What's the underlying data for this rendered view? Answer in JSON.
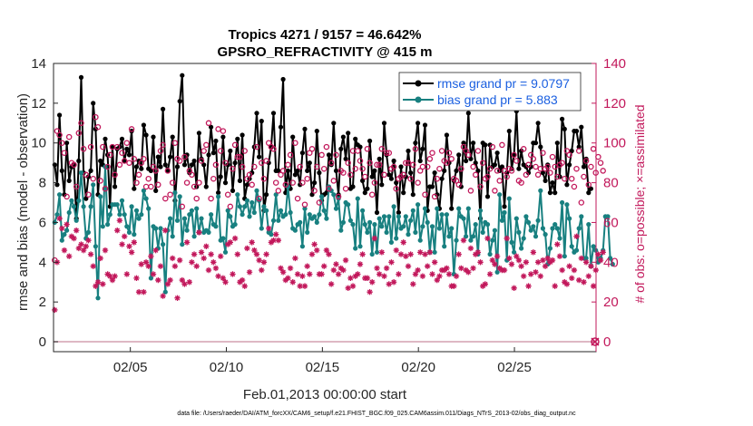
{
  "chart_data": {
    "type": "line",
    "title": "Tropics 4271 / 9157 = 46.642%",
    "subtitle": "GPSRO_REFRACTIVITY @ 415 m",
    "xlabel": "Feb.01,2013 00:00:00 start",
    "ylabel": "rmse and bias (model - observation)",
    "ylabel_right": "# of obs: o=possible; ×=assimilated",
    "xlim": [
      1,
      29.25
    ],
    "ylim": [
      -0.5,
      14
    ],
    "ylim_right": [
      -5,
      140
    ],
    "x_ticks": [
      {
        "x": 5,
        "label": "02/05"
      },
      {
        "x": 10,
        "label": "02/10"
      },
      {
        "x": 15,
        "label": "02/15"
      },
      {
        "x": 20,
        "label": "02/20"
      },
      {
        "x": 25,
        "label": "02/25"
      }
    ],
    "y_ticks_left": [
      "0",
      "2",
      "4",
      "6",
      "8",
      "10",
      "12",
      "14"
    ],
    "y_ticks_right": [
      "0",
      "20",
      "40",
      "60",
      "80",
      "100",
      "120",
      "140"
    ],
    "legend": {
      "position": "top-right"
    },
    "series": [
      {
        "name": "rmse grand pr = 9.0797",
        "axis": "left",
        "color": "#000000",
        "marker": "filled-circle",
        "values": [
          8.9,
          7.9,
          11.4,
          8.6,
          7.4,
          10.0,
          8.1,
          8.8,
          8.9,
          6.2,
          9.1,
          13.3,
          8.5,
          7.2,
          8.3,
          8.6,
          12.0,
          10.7,
          7.4,
          9.1,
          8.9,
          10.2,
          9.4,
          6.8,
          9.8,
          7.8,
          9.7,
          9.8,
          10.2,
          9.1,
          9.7,
          9.4,
          10.6,
          7.7,
          8.8,
          9.1,
          8.7,
          10.9,
          10.4,
          8.7,
          8.6,
          10.3,
          7.6,
          9.3,
          8.8,
          11.7,
          8.9,
          8.6,
          9.3,
          10.3,
          7.1,
          8.8,
          12.1,
          13.4,
          8.9,
          9.4,
          8.5,
          8.9,
          9.1,
          7.8,
          10.5,
          9.2,
          8.9,
          7.8,
          9.4,
          10.8,
          9.5,
          10.1,
          7.5,
          8.3,
          10.3,
          8.0,
          8.9,
          9.6,
          7.6,
          9.0,
          10.2,
          8.1,
          10.4,
          7.2,
          7.9,
          8.2,
          8.5,
          9.8,
          11.5,
          9.3,
          11.1,
          6.6,
          7.4,
          9.0,
          9.8,
          11.5,
          8.6,
          8.6,
          10.8,
          13.2,
          7.5,
          8.6,
          7.7,
          10.3,
          8.4,
          8.6,
          7.9,
          9.5,
          10.7,
          8.6,
          9.0,
          7.4,
          8.0,
          10.6,
          8.5,
          7.1,
          7.4,
          7.5,
          9.4,
          8.9,
          11.0,
          8.6,
          7.4,
          9.7,
          10.3,
          9.2,
          10.5,
          7.7,
          7.8,
          10.2,
          9.9,
          9.8,
          8.1,
          7.5,
          7.7,
          10.1,
          8.3,
          8.6,
          6.5,
          9.2,
          7.9,
          11.0,
          9.4,
          8.4,
          8.2,
          9.1,
          8.0,
          6.5,
          8.8,
          7.5,
          8.3,
          9.6,
          8.5,
          7.4,
          10.0,
          11.0,
          9.1,
          9.7,
          10.9,
          6.6,
          7.8,
          7.8,
          8.5,
          7.4,
          6.7,
          8.2,
          8.6,
          10.4,
          9.0,
          6.7,
          8.1,
          8.6,
          9.4,
          7.8,
          10.0,
          9.1,
          11.5,
          9.2,
          10.0,
          9.0,
          8.6,
          6.2,
          10.0,
          9.9,
          7.3,
          9.9,
          8.8,
          8.9,
          9.5,
          8.6,
          8.8,
          6.8,
          8.5,
          10.6,
          8.7,
          9.4,
          11.6,
          8.7,
          9.6,
          8.9,
          8.8,
          8.5,
          8.8,
          10.0,
          10.0,
          11.0,
          9.8,
          8.5,
          8.1,
          8.9,
          7.5,
          8.0,
          7.5,
          10.0,
          8.3,
          11.2,
          10.7,
          7.9,
          8.9,
          9.6,
          10.6,
          10.6,
          9.8,
          10.8,
          8.8,
          9.2,
          7.5,
          7.7
        ]
      },
      {
        "name": "bias grand pr = 5.883",
        "axis": "left",
        "color": "#188080",
        "marker": "filled-circle",
        "values": [
          6.0,
          6.4,
          7.4,
          5.1,
          5.4,
          5.6,
          6.5,
          7.1,
          6.8,
          6.1,
          7.1,
          8.5,
          6.8,
          5.2,
          5.5,
          6.8,
          7.9,
          4.8,
          2.2,
          7.3,
          5.8,
          8.8,
          5.9,
          6.4,
          6.9,
          6.9,
          6.9,
          6.4,
          7.1,
          6.4,
          5.8,
          5.5,
          6.8,
          5.4,
          6.6,
          6.2,
          6.4,
          7.6,
          7.2,
          6.7,
          3.2,
          5.8,
          5.7,
          4.7,
          5.7,
          4.9,
          2.5,
          5.6,
          6.2,
          5.3,
          7.5,
          6.1,
          7.3,
          4.9,
          6.2,
          5.6,
          6.4,
          6.6,
          5.3,
          6.7,
          5.5,
          6.2,
          5.5,
          5.6,
          5.5,
          6.4,
          5.9,
          5.8,
          7.3,
          5.1,
          5.2,
          4.5,
          6.6,
          6.3,
          5.8,
          5.9,
          7.4,
          6.8,
          6.4,
          6.8,
          7.1,
          6.3,
          7.0,
          6.5,
          7.6,
          7.1,
          5.7,
          6.8,
          6.6,
          5.5,
          5.4,
          6.1,
          7.4,
          6.1,
          6.6,
          6.3,
          6.4,
          7.8,
          6.5,
          5.7,
          5.6,
          5.9,
          6.0,
          4.8,
          6.7,
          5.5,
          6.4,
          6.2,
          6.3,
          6.0,
          6.4,
          7.3,
          6.6,
          6.2,
          7.8,
          7.6,
          7.4,
          6.7,
          7.2,
          5.6,
          6.0,
          7.0,
          6.9,
          6.1,
          5.9,
          4.7,
          7.2,
          4.8,
          6.6,
          5.9,
          5.5,
          6.0,
          4.4,
          5.9,
          4.5,
          6.2,
          5.8,
          6.3,
          5.5,
          6.3,
          5.0,
          6.8,
          5.2,
          6.3,
          5.7,
          5.8,
          6.3,
          5.4,
          6.1,
          6.6,
          5.5,
          6.9,
          5.1,
          5.8,
          6.7,
          6.0,
          4.5,
          5.8,
          4.5,
          6.7,
          5.7,
          6.4,
          4.8,
          6.4,
          5.3,
          5.7,
          3.4,
          5.1,
          6.7,
          6.3,
          6.2,
          5.3,
          6.7,
          5.1,
          5.3,
          5.9,
          4.4,
          6.6,
          5.5,
          6.0,
          5.9,
          4.4,
          5.1,
          5.6,
          3.5,
          7.4,
          6.1,
          6.5,
          4.1,
          7.2,
          5.0,
          4.5,
          6.2,
          5.5,
          4.7,
          5.2,
          6.3,
          6.0,
          5.6,
          5.8,
          5.3,
          6.1,
          7.6,
          5.7,
          5.4,
          3.9,
          4.7,
          5.7,
          5.9,
          5.7,
          5.2,
          7.0,
          4.3,
          6.9,
          6.2,
          4.8,
          4.5,
          4.6,
          5.7,
          6.3,
          4.2,
          4.2,
          5.9,
          3.8,
          4.8,
          4.6,
          4.0,
          4.2,
          4.6,
          6.3,
          6.3,
          4.2,
          3.9
        ]
      },
      {
        "name": "# obs possible",
        "axis": "right",
        "color": "#c2185b",
        "marker": "open-circle",
        "values": [
          41,
          106,
          104,
          100,
          95,
          73,
          103,
          90,
          89,
          78,
          105,
          110,
          97,
          84,
          74,
          98,
          82,
          113,
          108,
          81,
          98,
          77,
          88,
          94,
          98,
          84,
          98,
          89,
          95,
          91,
          100,
          90,
          107,
          92,
          80,
          84,
          90,
          92,
          78,
          82,
          78,
          88,
          86,
          79,
          96,
          99,
          72,
          86,
          74,
          80,
          100,
          92,
          91,
          68,
          93,
          80,
          86,
          84,
          78,
          72,
          80,
          91,
          96,
          99,
          110,
          72,
          82,
          89,
          107,
          96,
          106,
          90,
          74,
          68,
          87,
          99,
          93,
          93,
          88,
          96,
          82,
          84,
          79,
          88,
          98,
          72,
          90,
          82,
          91,
          100,
          98,
          97,
          80,
          76,
          84,
          86,
          79,
          89,
          94,
          80,
          100,
          72,
          88,
          80,
          69,
          82,
          95,
          97,
          76,
          88,
          70,
          94,
          87,
          98,
          77,
          90,
          81,
          94,
          73,
          86,
          85,
          77,
          90,
          84,
          96,
          87,
          96,
          91,
          87,
          83,
          97,
          90,
          74,
          80,
          89,
          89,
          97,
          84,
          95,
          95,
          87,
          88,
          77,
          82,
          83,
          84,
          90,
          90,
          82,
          89,
          97,
          80,
          86,
          88,
          74,
          88,
          92,
          95,
          73,
          82,
          87,
          96,
          91,
          90,
          95,
          92,
          82,
          81,
          79,
          87,
          98,
          96,
          94,
          76,
          88,
          84,
          96,
          78,
          90,
          82,
          83,
          87,
          98,
          76,
          86,
          81,
          99,
          86,
          83,
          87,
          86,
          94,
          91,
          81,
          80,
          97,
          84,
          89,
          94,
          92,
          88,
          84,
          87,
          95,
          87,
          88,
          85,
          93,
          88,
          83,
          89,
          90,
          82,
          96,
          94,
          82,
          78,
          87,
          96,
          70,
          83,
          91,
          79,
          88,
          97,
          85,
          93,
          90,
          86
        ]
      },
      {
        "name": "# obs assimilated",
        "axis": "right",
        "color": "#c2185b",
        "marker": "asterisk",
        "values": [
          16,
          40,
          62,
          57,
          46,
          59,
          43,
          53,
          52,
          56,
          47,
          49,
          46,
          48,
          51,
          44,
          38,
          28,
          30,
          42,
          29,
          46,
          34,
          33,
          31,
          33,
          56,
          61,
          49,
          53,
          34,
          48,
          45,
          50,
          32,
          25,
          39,
          25,
          40,
          38,
          43,
          34,
          46,
          31,
          38,
          23,
          56,
          29,
          31,
          42,
          38,
          22,
          41,
          31,
          29,
          50,
          30,
          40,
          44,
          38,
          55,
          45,
          42,
          48,
          36,
          44,
          40,
          37,
          33,
          43,
          32,
          30,
          49,
          50,
          34,
          52,
          44,
          30,
          31,
          28,
          47,
          35,
          50,
          46,
          44,
          41,
          36,
          40,
          44,
          57,
          50,
          51,
          54,
          51,
          37,
          35,
          31,
          32,
          37,
          30,
          42,
          34,
          28,
          33,
          28,
          38,
          34,
          44,
          49,
          46,
          34,
          34,
          38,
          46,
          44,
          29,
          36,
          39,
          34,
          37,
          36,
          41,
          27,
          32,
          28,
          33,
          34,
          39,
          44,
          32,
          32,
          25,
          30,
          52,
          37,
          34,
          45,
          33,
          37,
          29,
          40,
          30,
          46,
          34,
          44,
          50,
          43,
          38,
          44,
          29,
          34,
          36,
          45,
          33,
          44,
          38,
          45,
          34,
          40,
          31,
          33,
          36,
          36,
          37,
          34,
          28,
          28,
          33,
          44,
          37,
          51,
          36,
          35,
          47,
          37,
          44,
          45,
          40,
          28,
          29,
          52,
          34,
          41,
          39,
          43,
          37,
          36,
          36,
          52,
          42,
          39,
          27,
          43,
          41,
          38,
          33,
          40,
          28,
          34,
          45,
          35,
          40,
          33,
          41,
          38,
          42,
          40,
          41,
          28,
          49,
          43,
          36,
          30,
          29,
          38,
          32,
          36,
          53,
          31,
          42,
          30,
          40,
          33,
          38,
          28,
          36,
          44,
          41,
          45
        ]
      }
    ],
    "endpoint_markers": [
      {
        "x": 29.2,
        "y_right": 0,
        "color": "#c2185b"
      }
    ],
    "footnote": "data file: /Users/raeder/DAI/ATM_forcXX/CAM6_setup/f.e21.FHIST_BGC.f09_025.CAM6assim.011/Diags_NTrS_2013-02/obs_diag_output.nc"
  }
}
